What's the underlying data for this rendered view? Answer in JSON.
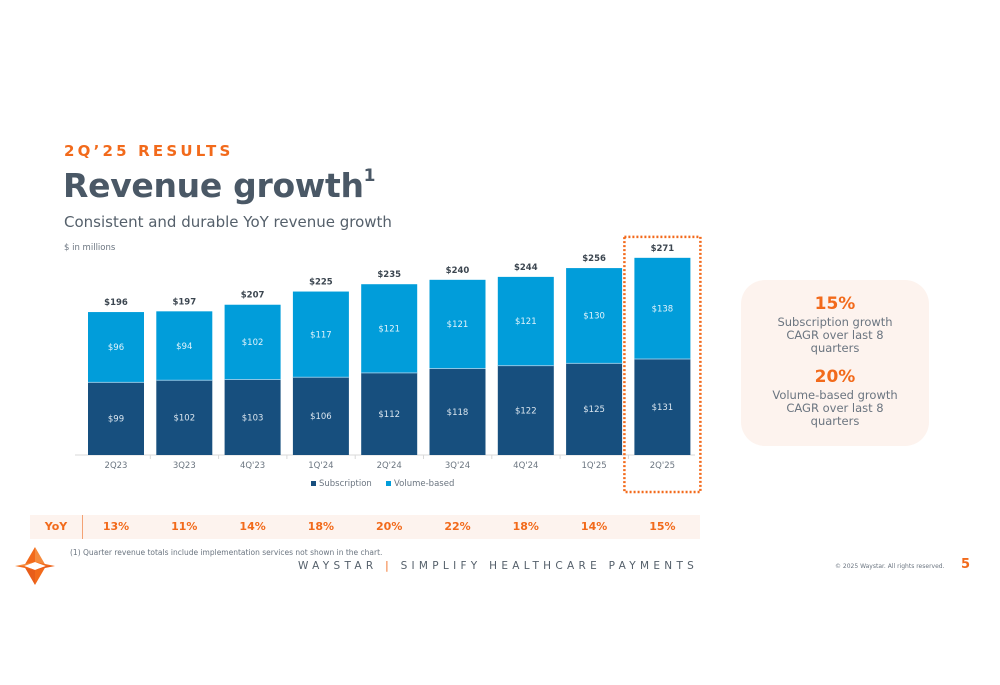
{
  "header": {
    "eyebrow": "2Q’25 RESULTS",
    "title": "Revenue growth",
    "title_superscript": "1",
    "subtitle": "Consistent and durable YoY revenue growth",
    "units": "$ in millions"
  },
  "chart_data": {
    "type": "bar",
    "stacked": true,
    "title": "Revenue growth",
    "xlabel": "",
    "ylabel": "$ in millions",
    "categories": [
      "2Q23",
      "3Q23",
      "4Q'23",
      "1Q'24",
      "2Q'24",
      "3Q'24",
      "4Q'24",
      "1Q'25",
      "2Q'25"
    ],
    "series": [
      {
        "name": "Subscription",
        "color": "#174f7e",
        "values": [
          99,
          102,
          103,
          106,
          112,
          118,
          122,
          125,
          131
        ],
        "labels": [
          "$99",
          "$102",
          "$103",
          "$106",
          "$112",
          "$118",
          "$122",
          "$125",
          "$131"
        ]
      },
      {
        "name": "Volume-based",
        "color": "#019dda",
        "values": [
          96,
          94,
          102,
          117,
          121,
          121,
          121,
          130,
          138
        ],
        "labels": [
          "$96",
          "$94",
          "$102",
          "$117",
          "$121",
          "$121",
          "$121",
          "$130",
          "$138"
        ]
      }
    ],
    "totals": [
      196,
      197,
      207,
      225,
      235,
      240,
      244,
      256,
      271
    ],
    "total_labels": [
      "$196",
      "$197",
      "$207",
      "$225",
      "$235",
      "$240",
      "$244",
      "$256",
      "$271"
    ],
    "highlighted_category": "2Q'25",
    "highlight_color": "#f26a1b",
    "ylim": [
      0,
      280
    ],
    "grid": false,
    "legend": "bottom-center"
  },
  "callout": {
    "stat1_value": "15%",
    "stat1_desc": "Subscription growth CAGR over last 8 quarters",
    "stat2_value": "20%",
    "stat2_desc": "Volume-based growth CAGR over last 8 quarters"
  },
  "yoy": {
    "label": "YoY",
    "values": [
      "13%",
      "11%",
      "14%",
      "18%",
      "20%",
      "22%",
      "18%",
      "14%",
      "15%"
    ]
  },
  "footer": {
    "footnote": "(1)   Quarter revenue totals include implementation services not shown in the chart.",
    "brand": "WAYSTAR",
    "divider": "|",
    "tagline": "SIMPLIFY HEALTHCARE PAYMENTS",
    "copyright": "© 2025 Waystar. All rights reserved.",
    "page_number": "5"
  },
  "colors": {
    "accent": "#f26a1b",
    "title": "#4a5866",
    "subscription": "#174f7e",
    "volume_based": "#019dda"
  }
}
